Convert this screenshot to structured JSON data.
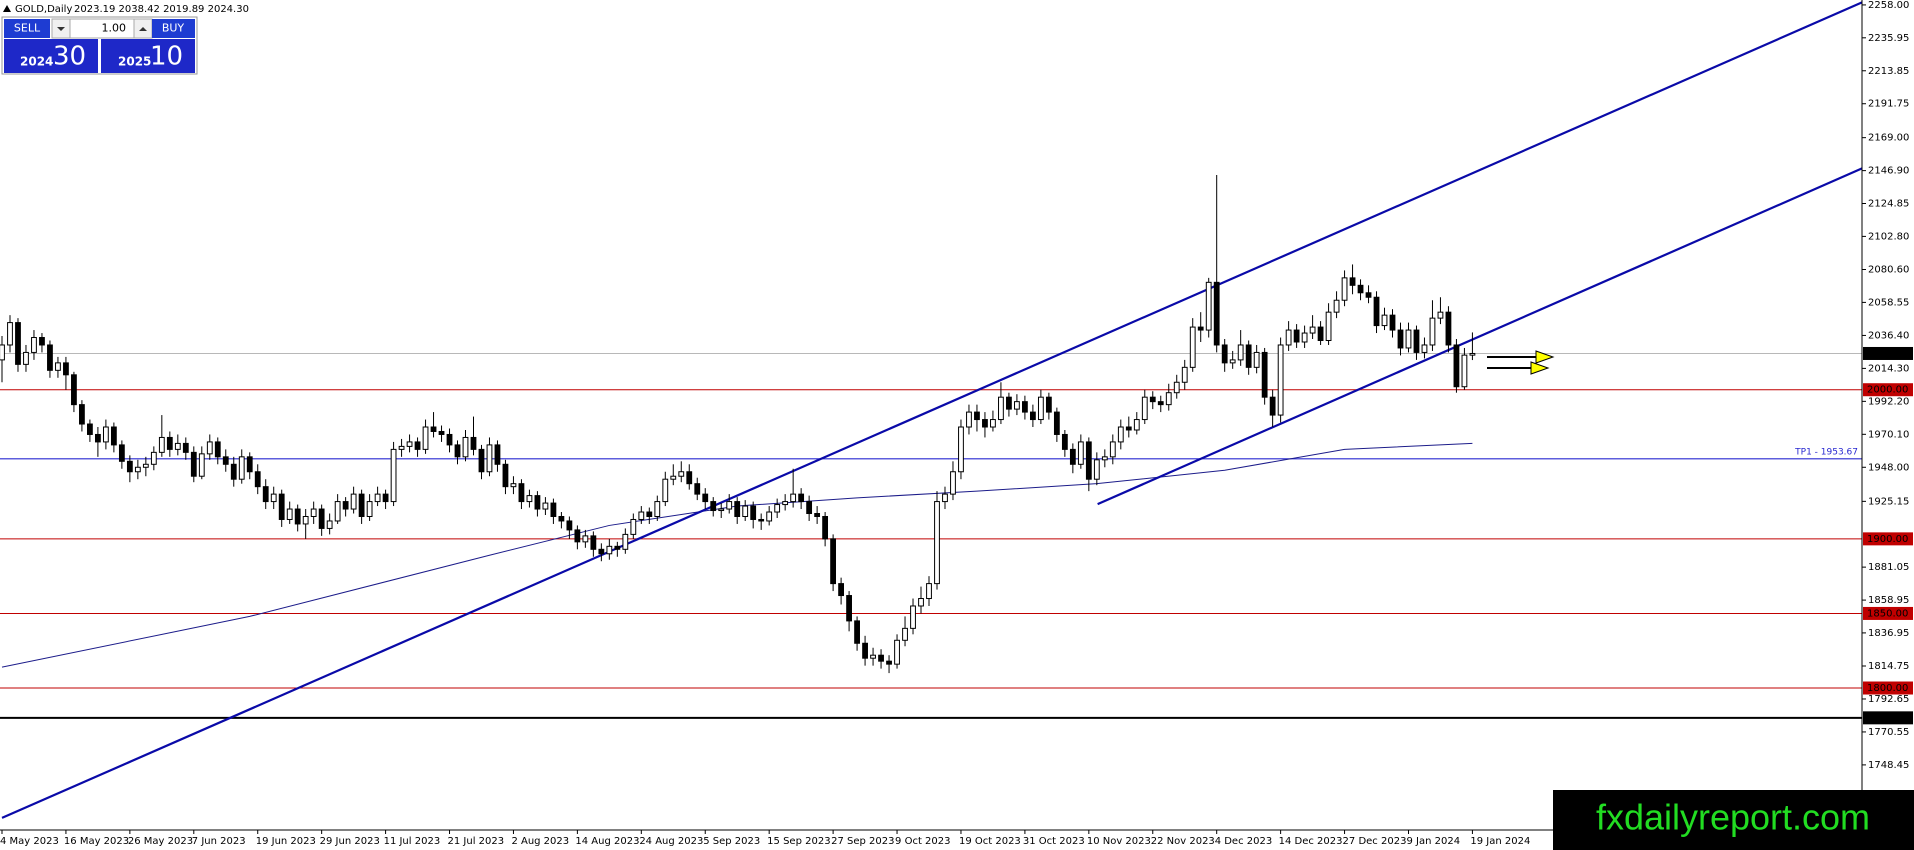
{
  "chart_data": {
    "type": "candlestick",
    "title": "GOLD,Daily",
    "quote": "2023.19 2038.42 2019.89 2024.30",
    "up_color": "#ffffff",
    "down_color": "#000000",
    "categories": [
      "4 May 2023",
      null,
      null,
      null,
      null,
      null,
      null,
      null,
      "16 May 2023",
      null,
      null,
      null,
      null,
      null,
      null,
      null,
      "26 May 2023",
      null,
      null,
      null,
      null,
      null,
      null,
      null,
      "7 Jun 2023",
      null,
      null,
      null,
      null,
      null,
      null,
      null,
      "19 Jun 2023",
      null,
      null,
      null,
      null,
      null,
      null,
      null,
      "29 Jun 2023",
      null,
      null,
      null,
      null,
      null,
      null,
      null,
      "11 Jul 2023",
      null,
      null,
      null,
      null,
      null,
      null,
      null,
      "21 Jul 2023",
      null,
      null,
      null,
      null,
      null,
      null,
      null,
      "2 Aug 2023",
      null,
      null,
      null,
      null,
      null,
      null,
      null,
      "14 Aug 2023",
      null,
      null,
      null,
      null,
      null,
      null,
      null,
      "24 Aug 2023",
      null,
      null,
      null,
      null,
      null,
      null,
      null,
      "5 Sep 2023",
      null,
      null,
      null,
      null,
      null,
      null,
      null,
      "15 Sep 2023",
      null,
      null,
      null,
      null,
      null,
      null,
      null,
      "27 Sep 2023",
      null,
      null,
      null,
      null,
      null,
      null,
      null,
      "9 Oct 2023",
      null,
      null,
      null,
      null,
      null,
      null,
      null,
      "19 Oct 2023",
      null,
      null,
      null,
      null,
      null,
      null,
      null,
      "31 Oct 2023",
      null,
      null,
      null,
      null,
      null,
      null,
      null,
      "10 Nov 2023",
      null,
      null,
      null,
      null,
      null,
      null,
      null,
      "22 Nov 2023",
      null,
      null,
      null,
      null,
      null,
      null,
      null,
      "4 Dec 2023",
      null,
      null,
      null,
      null,
      null,
      null,
      null,
      "14 Dec 2023",
      null,
      null,
      null,
      null,
      null,
      null,
      null,
      "27 Dec 2023",
      null,
      null,
      null,
      null,
      null,
      null,
      null,
      "9 Jan 2024",
      null,
      null,
      null,
      null,
      null,
      null,
      null,
      "19 Jan 2024"
    ],
    "open": [
      2020,
      2030,
      2045,
      2017,
      2025,
      2035,
      2030,
      2013,
      2018,
      2010,
      1990,
      1977,
      1970,
      1965,
      1975,
      1963,
      1952,
      1945,
      1948,
      1950,
      1958,
      1968,
      1960,
      1964,
      1958,
      1942,
      1957,
      1965,
      1955,
      1950,
      1940,
      1955,
      1945,
      1935,
      1925,
      1930,
      1913,
      1920,
      1910,
      1915,
      1920,
      1907,
      1912,
      1925,
      1920,
      1930,
      1915,
      1925,
      1930,
      1925,
      1960,
      1962,
      1965,
      1960,
      1975,
      1972,
      1970,
      1963,
      1955,
      1968,
      1960,
      1945,
      1963,
      1950,
      1935,
      1937,
      1925,
      1929,
      1920,
      1924,
      1915,
      1912,
      1906,
      1898,
      1902,
      1893,
      1890,
      1895,
      1893,
      1903,
      1913,
      1918,
      1915,
      1925,
      1940,
      1942,
      1945,
      1937,
      1930,
      1925,
      1919,
      1920,
      1925,
      1915,
      1922,
      1913,
      1912,
      1918,
      1923,
      1925,
      1930,
      1925,
      1917,
      1915,
      1900,
      1870,
      1862,
      1845,
      1830,
      1820,
      1822,
      1818,
      1816,
      1832,
      1840,
      1855,
      1860,
      1870,
      1925,
      1930,
      1945,
      1975,
      1985,
      1980,
      1975,
      1980,
      1995,
      1987,
      1992,
      1985,
      1980,
      1995,
      1985,
      1970,
      1960,
      1950,
      1965,
      1940,
      1953,
      1955,
      1965,
      1975,
      1973,
      1980,
      1995,
      1992,
      1990,
      1998,
      2005,
      2015,
      2042,
      2040,
      2072,
      2030,
      2018,
      2020,
      2030,
      2015,
      2025,
      1995,
      1983,
      2030,
      2040,
      2032,
      2038,
      2042,
      2033,
      2052,
      2060,
      2075,
      2070,
      2065,
      2062,
      2043,
      2050,
      2040,
      2028,
      2040,
      2025,
      2030,
      2048,
      2052,
      2030,
      2002,
      2023.19
    ],
    "high": [
      2036,
      2050,
      2048,
      2030,
      2040,
      2038,
      2033,
      2022,
      2022,
      2012,
      1993,
      1980,
      1975,
      1980,
      1978,
      1966,
      1956,
      1953,
      1955,
      1962,
      1983,
      1972,
      1970,
      1968,
      1962,
      1962,
      1970,
      1968,
      1960,
      1955,
      1960,
      1958,
      1950,
      1940,
      1935,
      1933,
      1925,
      1923,
      1920,
      1925,
      1923,
      1917,
      1930,
      1928,
      1935,
      1933,
      1930,
      1935,
      1933,
      1965,
      1967,
      1970,
      1968,
      1980,
      1985,
      1976,
      1974,
      1966,
      1973,
      1982,
      1963,
      1968,
      1966,
      1953,
      1942,
      1940,
      1933,
      1932,
      1928,
      1927,
      1918,
      1915,
      1909,
      1906,
      1905,
      1897,
      1900,
      1898,
      1907,
      1917,
      1922,
      1921,
      1929,
      1945,
      1950,
      1952,
      1950,
      1941,
      1934,
      1928,
      1924,
      1930,
      1928,
      1926,
      1925,
      1917,
      1922,
      1927,
      1930,
      1947,
      1934,
      1929,
      1922,
      1918,
      1903,
      1874,
      1865,
      1848,
      1835,
      1827,
      1826,
      1822,
      1836,
      1848,
      1860,
      1868,
      1875,
      1932,
      1935,
      1952,
      1980,
      1990,
      1990,
      1985,
      1986,
      2005,
      1998,
      1997,
      1996,
      1990,
      2000,
      1998,
      1988,
      1973,
      1964,
      1970,
      1968,
      1958,
      1960,
      1970,
      1980,
      1982,
      1985,
      2000,
      1999,
      1996,
      2004,
      2010,
      2020,
      2048,
      2052,
      2075,
      2144,
      2034,
      2026,
      2040,
      2033,
      2030,
      2028,
      2000,
      2035,
      2046,
      2044,
      2043,
      2050,
      2046,
      2058,
      2066,
      2080,
      2084,
      2074,
      2070,
      2066,
      2055,
      2054,
      2045,
      2045,
      2043,
      2035,
      2060,
      2062,
      2056,
      2034,
      2028,
      2038.42
    ],
    "low": [
      2005,
      2025,
      2012,
      2012,
      2020,
      2025,
      2008,
      2008,
      2000,
      1985,
      1972,
      1965,
      1955,
      1960,
      1958,
      1947,
      1938,
      1940,
      1942,
      1946,
      1955,
      1955,
      1956,
      1953,
      1938,
      1940,
      1953,
      1950,
      1945,
      1935,
      1937,
      1940,
      1930,
      1920,
      1920,
      1908,
      1910,
      1905,
      1900,
      1910,
      1902,
      1903,
      1910,
      1915,
      1917,
      1910,
      1912,
      1922,
      1920,
      1922,
      1955,
      1958,
      1955,
      1957,
      1968,
      1965,
      1958,
      1950,
      1952,
      1956,
      1940,
      1942,
      1945,
      1930,
      1930,
      1920,
      1921,
      1915,
      1916,
      1910,
      1907,
      1900,
      1893,
      1894,
      1888,
      1885,
      1886,
      1888,
      1890,
      1900,
      1910,
      1910,
      1912,
      1922,
      1936,
      1938,
      1933,
      1926,
      1920,
      1915,
      1914,
      1917,
      1910,
      1912,
      1907,
      1906,
      1909,
      1914,
      1919,
      1921,
      1920,
      1912,
      1910,
      1895,
      1865,
      1856,
      1838,
      1825,
      1815,
      1815,
      1813,
      1810,
      1813,
      1828,
      1836,
      1850,
      1855,
      1866,
      1920,
      1926,
      1940,
      1970,
      1972,
      1968,
      1972,
      1977,
      1982,
      1983,
      1980,
      1975,
      1977,
      1980,
      1965,
      1955,
      1944,
      1947,
      1932,
      1936,
      1948,
      1950,
      1960,
      1968,
      1970,
      1977,
      1987,
      1985,
      1986,
      1994,
      2000,
      2012,
      2032,
      2035,
      2025,
      2012,
      2014,
      2016,
      2010,
      2011,
      1990,
      1975,
      1978,
      2026,
      2028,
      2028,
      2034,
      2030,
      2030,
      2048,
      2056,
      2064,
      2060,
      2058,
      2038,
      2040,
      2035,
      2023,
      2025,
      2020,
      2021,
      2026,
      2044,
      2025,
      1998,
      2000,
      2019.89
    ],
    "close": [
      2030,
      2045,
      2017,
      2025,
      2035,
      2030,
      2013,
      2018,
      2010,
      1990,
      1977,
      1970,
      1965,
      1975,
      1963,
      1952,
      1945,
      1948,
      1950,
      1958,
      1968,
      1960,
      1964,
      1958,
      1942,
      1957,
      1965,
      1955,
      1950,
      1940,
      1955,
      1945,
      1935,
      1925,
      1930,
      1913,
      1920,
      1910,
      1915,
      1920,
      1907,
      1912,
      1925,
      1920,
      1930,
      1915,
      1925,
      1930,
      1925,
      1960,
      1962,
      1965,
      1960,
      1975,
      1972,
      1970,
      1963,
      1955,
      1968,
      1960,
      1945,
      1963,
      1950,
      1935,
      1937,
      1925,
      1929,
      1920,
      1924,
      1915,
      1912,
      1906,
      1898,
      1902,
      1893,
      1890,
      1895,
      1893,
      1903,
      1913,
      1918,
      1915,
      1925,
      1940,
      1942,
      1945,
      1937,
      1930,
      1925,
      1919,
      1920,
      1925,
      1915,
      1922,
      1913,
      1912,
      1918,
      1923,
      1925,
      1930,
      1925,
      1917,
      1915,
      1900,
      1870,
      1862,
      1845,
      1830,
      1820,
      1822,
      1818,
      1816,
      1832,
      1840,
      1855,
      1860,
      1870,
      1925,
      1930,
      1945,
      1975,
      1985,
      1980,
      1975,
      1980,
      1995,
      1987,
      1992,
      1985,
      1980,
      1995,
      1985,
      1970,
      1960,
      1950,
      1965,
      1940,
      1953,
      1955,
      1965,
      1975,
      1973,
      1980,
      1995,
      1992,
      1990,
      1998,
      2005,
      2015,
      2042,
      2040,
      2072,
      2030,
      2018,
      2020,
      2030,
      2015,
      2025,
      1995,
      1983,
      2030,
      2040,
      2032,
      2038,
      2042,
      2033,
      2052,
      2060,
      2075,
      2070,
      2065,
      2062,
      2043,
      2050,
      2040,
      2028,
      2040,
      2025,
      2030,
      2048,
      2052,
      2030,
      2002,
      2023.19,
      2024.3
    ],
    "xlim": [
      0,
      232.75
    ],
    "ylim": [
      1704.8,
      2261.3
    ],
    "yticks": [
      {
        "value": 2258,
        "label": "2258.00"
      },
      {
        "value": 2235.95,
        "label": "2235.95"
      },
      {
        "value": 2213.85,
        "label": "2213.85"
      },
      {
        "value": 2191.75,
        "label": "2191.75"
      },
      {
        "value": 2169,
        "label": "2169.00"
      },
      {
        "value": 2146.9,
        "label": "2146.90"
      },
      {
        "value": 2124.85,
        "label": "2124.85"
      },
      {
        "value": 2102.8,
        "label": "2102.80"
      },
      {
        "value": 2080.6,
        "label": "2080.60"
      },
      {
        "value": 2058.55,
        "label": "2058.55"
      },
      {
        "value": 2036.4,
        "label": "2036.40"
      },
      {
        "value": 2014.3,
        "label": "2014.30"
      },
      {
        "value": 1992.2,
        "label": "1992.20"
      },
      {
        "value": 1970.1,
        "label": "1970.10"
      },
      {
        "value": 1948,
        "label": "1948.00"
      },
      {
        "value": 1925.15,
        "label": "1925.15"
      },
      {
        "value": 1881.05,
        "label": "1881.05"
      },
      {
        "value": 1858.95,
        "label": "1858.95"
      },
      {
        "value": 1836.95,
        "label": "1836.95"
      },
      {
        "value": 1814.75,
        "label": "1814.75"
      },
      {
        "value": 1792.65,
        "label": "1792.65"
      },
      {
        "value": 1770.55,
        "label": "1770.55"
      },
      {
        "value": 1748.45,
        "label": "1748.45"
      }
    ],
    "moving_average": {
      "color": "#1c1c8a",
      "x": [
        0,
        31,
        61,
        76,
        92,
        107,
        122,
        137,
        153,
        168,
        184
      ],
      "values": [
        1814,
        1848,
        1889,
        1909,
        1922,
        1927.5,
        1932,
        1937,
        1946,
        1960,
        1964
      ]
    },
    "trendlines": [
      {
        "color": "#0a0aa8",
        "x": [
          0,
          232.75
        ],
        "values": [
          1712.9,
          2259.7
        ]
      },
      {
        "color": "#0a0aa8",
        "x": [
          137.1,
          232.75
        ],
        "values": [
          1923.3,
          2148.4
        ]
      }
    ],
    "levels": [
      {
        "value": 2000,
        "label": "2000.00",
        "color": "#c00000"
      },
      {
        "value": 1900,
        "label": "1900.00",
        "color": "#c00000"
      },
      {
        "value": 1850,
        "label": "1850.00",
        "color": "#c00000"
      },
      {
        "value": 1800,
        "label": "1800.00",
        "color": "#c00000"
      },
      {
        "value": 1780,
        "label": "1780.00",
        "color": "#000000"
      }
    ],
    "target": {
      "value": 1953.67,
      "label": "TP1 - 1953.67",
      "color": "#2828d0"
    },
    "current_price": {
      "value": 2024.3,
      "label": "2024.30",
      "color": "#b8b8b8"
    }
  },
  "trade_panel": {
    "sell": "SELL",
    "buy": "BUY",
    "lot": "1.00",
    "bid_big": "2024",
    "bid_small": "30",
    "ask_big": "2025",
    "ask_small": "10"
  },
  "watermark": "fxdailyreport.com"
}
